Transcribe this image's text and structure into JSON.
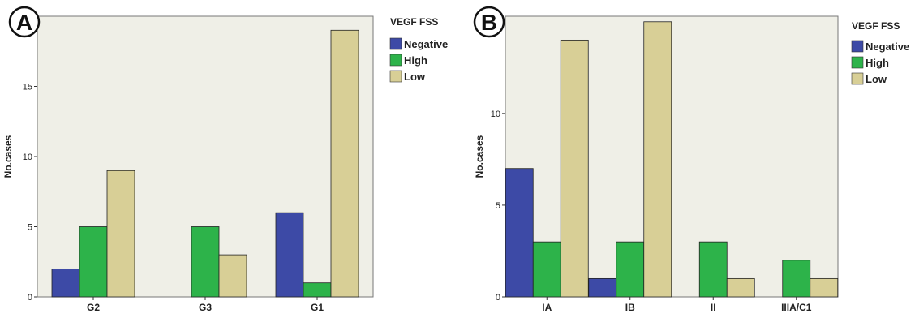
{
  "panels": [
    {
      "panel_label": "A",
      "legend_title": "VEGF FSS",
      "ylabel": "No.cases",
      "xlabel": ""
    },
    {
      "panel_label": "B",
      "legend_title": "VEGF FSS",
      "ylabel": "No.cases",
      "xlabel": ""
    }
  ],
  "colors": {
    "Negative": "#3d4aa6",
    "High": "#2db34a",
    "Low": "#d8cf96",
    "plot_bg": "#efefe7",
    "bar_stroke": "#222222"
  },
  "chart_data": [
    {
      "type": "bar",
      "title": "",
      "xlabel": "",
      "ylabel": "No.cases",
      "categories": [
        "G2",
        "G3",
        "G1"
      ],
      "series": [
        {
          "name": "Negative",
          "values": [
            2,
            0,
            6
          ]
        },
        {
          "name": "High",
          "values": [
            5,
            5,
            1
          ]
        },
        {
          "name": "Low",
          "values": [
            9,
            3,
            19
          ]
        }
      ],
      "ylim": [
        0,
        20
      ],
      "yticks": [
        0,
        5,
        10,
        15
      ],
      "legend": "right",
      "grid": false
    },
    {
      "type": "bar",
      "title": "",
      "xlabel": "",
      "ylabel": "No.cases",
      "categories": [
        "IA",
        "IB",
        "II",
        "IIIA/C1"
      ],
      "series": [
        {
          "name": "Negative",
          "values": [
            7,
            1,
            0,
            0
          ]
        },
        {
          "name": "High",
          "values": [
            3,
            3,
            3,
            2
          ]
        },
        {
          "name": "Low",
          "values": [
            14,
            15,
            1,
            1
          ]
        }
      ],
      "ylim": [
        0,
        15.3
      ],
      "yticks": [
        0,
        5,
        10
      ],
      "legend": "right",
      "grid": false
    }
  ]
}
